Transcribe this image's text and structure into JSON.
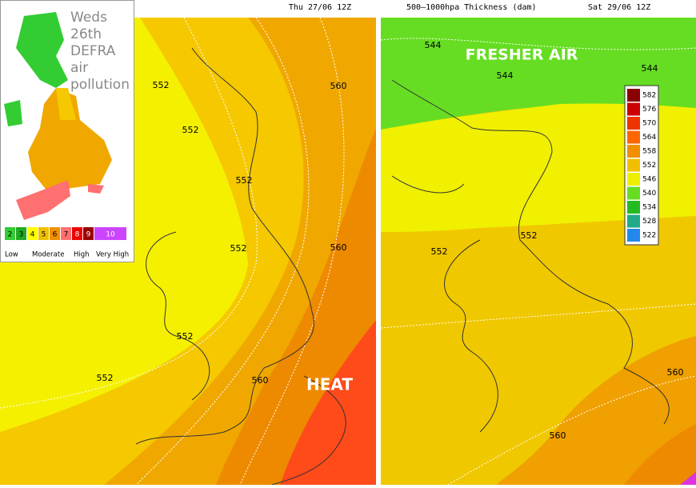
{
  "left_panel": {
    "header": "Thu 27/06 12Z",
    "inset": {
      "title": [
        "Weds",
        "26th",
        "DEFRA",
        "air",
        "pollution"
      ],
      "scale": [
        "2",
        "3",
        "4",
        "5",
        "6",
        "7",
        "8",
        "9",
        "10"
      ],
      "scale_labels": [
        "Low",
        "Moderate",
        "High",
        "Very High"
      ]
    },
    "contour_labels": [
      "552",
      "552",
      "552",
      "552",
      "552",
      "552",
      "560",
      "560",
      "560"
    ],
    "annotation": "HEAT"
  },
  "right_panel": {
    "header_title": "500–1000hpa Thickness (dam)",
    "header_time": "Sat 29/06 12Z",
    "annotation": "FRESHER AIR",
    "contour_labels": [
      "544",
      "544",
      "544",
      "552",
      "552",
      "560",
      "560"
    ],
    "legend": [
      "582",
      "576",
      "570",
      "564",
      "558",
      "552",
      "546",
      "540",
      "534",
      "528",
      "522"
    ]
  }
}
